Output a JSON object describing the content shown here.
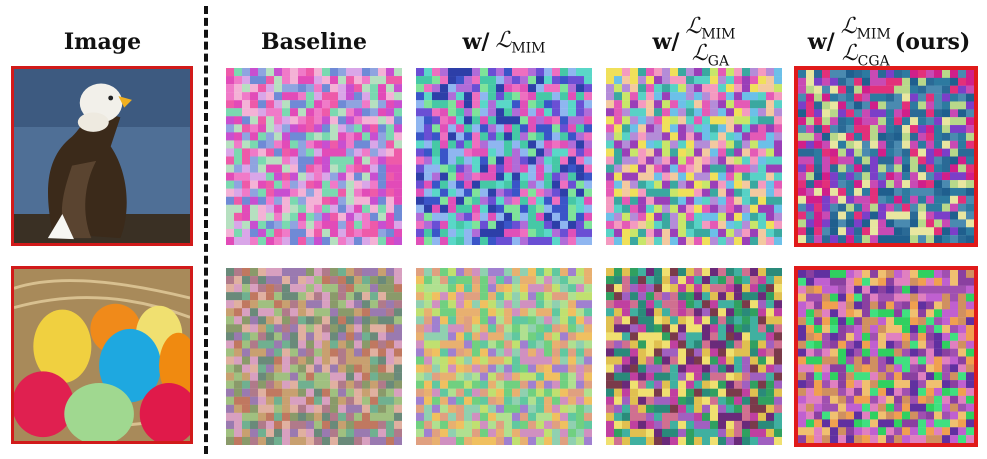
{
  "headers": {
    "image": "Image",
    "baseline": "Baseline",
    "w_mim": {
      "prefix": "w/",
      "loss": "ℒ",
      "sub": "MIM"
    },
    "w_mim_ga": {
      "prefix": "w/",
      "loss_top": "ℒ",
      "sub_top": "MIM",
      "loss_bottom": "ℒ",
      "sub_bottom": "GA"
    },
    "w_mim_cga": {
      "prefix": "w/",
      "loss_top": "ℒ",
      "sub_top": "MIM",
      "loss_bottom": "ℒ",
      "sub_bottom": "CGA",
      "suffix": "(ours)"
    }
  },
  "rows": [
    {
      "subject": "eagle"
    },
    {
      "subject": "easter eggs"
    }
  ],
  "palettes": {
    "baseline_1": [
      "#e24bb8",
      "#c84fd0",
      "#8fa4e0",
      "#f07ac8",
      "#d9a6e8",
      "#6f8ad6",
      "#ee5aa9",
      "#b6e0c0",
      "#f4b2d6",
      "#7ad9b0"
    ],
    "mim_1": [
      "#3a55c8",
      "#6a4fd4",
      "#e050b8",
      "#46c8a6",
      "#7fe39a",
      "#2d3fa8",
      "#b06cd8",
      "#8fb6f0",
      "#ee6fc0",
      "#5ad7c8"
    ],
    "ga_1": [
      "#f3c9a0",
      "#58d2c6",
      "#9a3fb8",
      "#c8e66a",
      "#e45ab6",
      "#6cc0e8",
      "#f0e05a",
      "#b48cd8",
      "#3aa8a0",
      "#f49ac0"
    ],
    "cga_1": [
      "#1f5f8e",
      "#2a6a96",
      "#d01f8a",
      "#7b3fc8",
      "#b8d88a",
      "#e2307a",
      "#4a8ab0",
      "#c84ab4",
      "#2d7aa0",
      "#e8e6a0"
    ],
    "baseline_2": [
      "#b07a8a",
      "#8a9a6a",
      "#c8a070",
      "#6a8a7a",
      "#d8a0c0",
      "#9a7ab0",
      "#70b090",
      "#c07860",
      "#a0c080",
      "#e0b0a0"
    ],
    "mim_2": [
      "#e8b070",
      "#70d080",
      "#c0e070",
      "#a080d0",
      "#f0c060",
      "#60c8a0",
      "#d090c0",
      "#90d0b0",
      "#e0a080",
      "#b0e090"
    ],
    "ga_2": [
      "#6a2a7a",
      "#2a8a7a",
      "#c040a0",
      "#e0c050",
      "#7a3a4a",
      "#40b0a0",
      "#a060c0",
      "#30a060",
      "#d07090",
      "#f0e070"
    ],
    "cga_2": [
      "#8a40a0",
      "#f0a050",
      "#c060d0",
      "#30d060",
      "#e080c0",
      "#6030a0",
      "#f0c070",
      "#a050b0",
      "#40e080",
      "#d09060"
    ]
  }
}
